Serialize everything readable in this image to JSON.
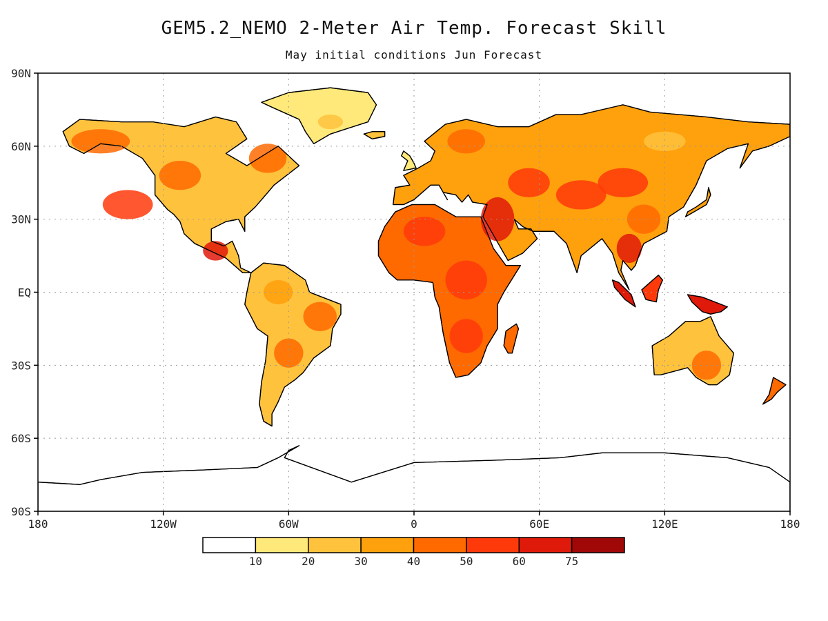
{
  "title": "GEM5.2_NEMO 2-Meter Air Temp. Forecast Skill",
  "subtitle": "May initial conditions  Jun Forecast",
  "axes": {
    "x_ticks": [
      {
        "value": -180,
        "label": "180"
      },
      {
        "value": -120,
        "label": "120W"
      },
      {
        "value": -60,
        "label": "60W"
      },
      {
        "value": 0,
        "label": "0"
      },
      {
        "value": 60,
        "label": "60E"
      },
      {
        "value": 120,
        "label": "120E"
      },
      {
        "value": 180,
        "label": "180"
      }
    ],
    "y_ticks": [
      {
        "value": 90,
        "label": "90N"
      },
      {
        "value": 60,
        "label": "60N"
      },
      {
        "value": 30,
        "label": "30N"
      },
      {
        "value": 0,
        "label": "EQ"
      },
      {
        "value": -30,
        "label": "30S"
      },
      {
        "value": -60,
        "label": "60S"
      },
      {
        "value": -90,
        "label": "90S"
      }
    ],
    "lon_range": [
      -180,
      180
    ],
    "lat_range": [
      -90,
      90
    ],
    "grid": "dotted"
  },
  "colorbar": {
    "bins": [
      {
        "color": "#ffffff"
      },
      {
        "color": "#ffe97a"
      },
      {
        "color": "#ffc23d"
      },
      {
        "color": "#ffa00d"
      },
      {
        "color": "#ff6a00"
      },
      {
        "color": "#ff3a0a"
      },
      {
        "color": "#e01a0a"
      },
      {
        "color": "#a00808"
      }
    ],
    "labels": [
      "10",
      "20",
      "30",
      "40",
      "50",
      "60",
      "75"
    ]
  },
  "regions": [
    {
      "name": "north-america",
      "color": "#ffc23d",
      "outline": [
        [
          -168,
          66
        ],
        [
          -160,
          71
        ],
        [
          -140,
          70
        ],
        [
          -125,
          70
        ],
        [
          -110,
          68
        ],
        [
          -95,
          72
        ],
        [
          -85,
          70
        ],
        [
          -80,
          63
        ],
        [
          -90,
          57
        ],
        [
          -80,
          52
        ],
        [
          -65,
          60
        ],
        [
          -55,
          52
        ],
        [
          -67,
          44
        ],
        [
          -70,
          41
        ],
        [
          -76,
          35
        ],
        [
          -81,
          31
        ],
        [
          -81,
          25
        ],
        [
          -84,
          30
        ],
        [
          -90,
          29
        ],
        [
          -97,
          26
        ],
        [
          -97,
          21
        ],
        [
          -91,
          19
        ],
        [
          -87,
          21
        ],
        [
          -84,
          15
        ],
        [
          -83,
          10
        ],
        [
          -78,
          8
        ],
        [
          -82,
          8
        ],
        [
          -90,
          14
        ],
        [
          -95,
          16
        ],
        [
          -105,
          20
        ],
        [
          -110,
          24
        ],
        [
          -112,
          29
        ],
        [
          -115,
          32
        ],
        [
          -118,
          34
        ],
        [
          -124,
          40
        ],
        [
          -124,
          48
        ],
        [
          -130,
          55
        ],
        [
          -140,
          60
        ],
        [
          -150,
          61
        ],
        [
          -158,
          57
        ],
        [
          -165,
          60
        ]
      ]
    },
    {
      "name": "greenland",
      "color": "#ffe97a",
      "outline": [
        [
          -73,
          78
        ],
        [
          -60,
          82
        ],
        [
          -40,
          84
        ],
        [
          -22,
          82
        ],
        [
          -18,
          77
        ],
        [
          -22,
          70
        ],
        [
          -40,
          65
        ],
        [
          -48,
          61
        ],
        [
          -52,
          66
        ],
        [
          -55,
          71
        ],
        [
          -68,
          76
        ]
      ]
    },
    {
      "name": "south-america",
      "color": "#ffc23d",
      "outline": [
        [
          -78,
          8
        ],
        [
          -72,
          12
        ],
        [
          -62,
          11
        ],
        [
          -52,
          5
        ],
        [
          -50,
          0
        ],
        [
          -35,
          -5
        ],
        [
          -35,
          -9
        ],
        [
          -39,
          -15
        ],
        [
          -40,
          -22
        ],
        [
          -48,
          -27
        ],
        [
          -53,
          -33
        ],
        [
          -57,
          -36
        ],
        [
          -62,
          -39
        ],
        [
          -65,
          -45
        ],
        [
          -68,
          -50
        ],
        [
          -68,
          -55
        ],
        [
          -72,
          -53
        ],
        [
          -74,
          -46
        ],
        [
          -73,
          -37
        ],
        [
          -71,
          -28
        ],
        [
          -70,
          -18
        ],
        [
          -75,
          -15
        ],
        [
          -81,
          -5
        ],
        [
          -80,
          0
        ]
      ]
    },
    {
      "name": "eurasia",
      "color": "#ffa00d",
      "outline": [
        [
          -10,
          36
        ],
        [
          -9,
          43
        ],
        [
          -2,
          44
        ],
        [
          -5,
          48
        ],
        [
          2,
          51
        ],
        [
          8,
          54
        ],
        [
          10,
          58
        ],
        [
          5,
          62
        ],
        [
          15,
          69
        ],
        [
          25,
          71
        ],
        [
          40,
          68
        ],
        [
          45,
          68
        ],
        [
          55,
          68
        ],
        [
          68,
          73
        ],
        [
          80,
          73
        ],
        [
          100,
          77
        ],
        [
          113,
          74
        ],
        [
          140,
          72
        ],
        [
          160,
          70
        ],
        [
          180,
          69
        ],
        [
          180,
          64
        ],
        [
          170,
          60
        ],
        [
          162,
          58
        ],
        [
          156,
          51
        ],
        [
          160,
          61
        ],
        [
          150,
          59
        ],
        [
          140,
          54
        ],
        [
          135,
          44
        ],
        [
          129,
          35
        ],
        [
          122,
          31
        ],
        [
          121,
          25
        ],
        [
          110,
          20
        ],
        [
          108,
          16
        ],
        [
          106,
          11
        ],
        [
          104,
          9
        ],
        [
          100,
          13
        ],
        [
          99,
          9
        ],
        [
          103,
          1
        ],
        [
          98,
          8
        ],
        [
          95,
          16
        ],
        [
          90,
          22
        ],
        [
          80,
          15
        ],
        [
          78,
          8
        ],
        [
          73,
          20
        ],
        [
          67,
          25
        ],
        [
          57,
          25
        ],
        [
          52,
          27
        ],
        [
          48,
          30
        ],
        [
          50,
          26
        ],
        [
          56,
          26
        ],
        [
          59,
          22
        ],
        [
          52,
          16
        ],
        [
          45,
          13
        ],
        [
          43,
          16
        ],
        [
          35,
          28
        ],
        [
          33,
          31
        ],
        [
          35,
          36
        ],
        [
          28,
          37
        ],
        [
          26,
          40
        ],
        [
          23,
          37
        ],
        [
          20,
          40
        ],
        [
          14,
          41
        ],
        [
          16,
          38
        ],
        [
          12,
          44
        ],
        [
          8,
          44
        ],
        [
          0,
          38
        ],
        [
          -5,
          36
        ]
      ]
    },
    {
      "name": "africa",
      "color": "#ff6a00",
      "outline": [
        [
          -17,
          21
        ],
        [
          -17,
          15
        ],
        [
          -12,
          8
        ],
        [
          -8,
          5
        ],
        [
          0,
          5
        ],
        [
          9,
          4
        ],
        [
          10,
          -2
        ],
        [
          12,
          -6
        ],
        [
          14,
          -17
        ],
        [
          17,
          -29
        ],
        [
          20,
          -35
        ],
        [
          26,
          -34
        ],
        [
          32,
          -29
        ],
        [
          35,
          -22
        ],
        [
          40,
          -15
        ],
        [
          40,
          -5
        ],
        [
          43,
          0
        ],
        [
          51,
          11
        ],
        [
          44,
          11
        ],
        [
          38,
          18
        ],
        [
          32,
          31
        ],
        [
          20,
          31
        ],
        [
          10,
          36
        ],
        [
          -1,
          36
        ],
        [
          -9,
          33
        ],
        [
          -14,
          27
        ]
      ]
    },
    {
      "name": "australia",
      "color": "#ffc23d",
      "outline": [
        [
          114,
          -22
        ],
        [
          122,
          -18
        ],
        [
          130,
          -12
        ],
        [
          137,
          -12
        ],
        [
          142,
          -10
        ],
        [
          146,
          -18
        ],
        [
          153,
          -25
        ],
        [
          151,
          -34
        ],
        [
          145,
          -38
        ],
        [
          141,
          -38
        ],
        [
          135,
          -35
        ],
        [
          131,
          -31
        ],
        [
          118,
          -34
        ],
        [
          115,
          -34
        ]
      ]
    },
    {
      "name": "antarctica",
      "color": "#ffffff",
      "outline": [
        [
          -180,
          -85
        ],
        [
          -180,
          -78
        ],
        [
          -160,
          -79
        ],
        [
          -150,
          -77
        ],
        [
          -130,
          -74
        ],
        [
          -100,
          -73
        ],
        [
          -75,
          -72
        ],
        [
          -65,
          -68
        ],
        [
          -55,
          -63
        ],
        [
          -60,
          -65
        ],
        [
          -62,
          -68
        ],
        [
          -30,
          -78
        ],
        [
          0,
          -70
        ],
        [
          40,
          -69
        ],
        [
          70,
          -68
        ],
        [
          90,
          -66
        ],
        [
          120,
          -66
        ],
        [
          150,
          -68
        ],
        [
          170,
          -72
        ],
        [
          180,
          -78
        ],
        [
          180,
          -90
        ],
        [
          -180,
          -90
        ]
      ]
    },
    {
      "name": "madagascar",
      "color": "#ff6a00",
      "outline": [
        [
          44,
          -16
        ],
        [
          49,
          -13
        ],
        [
          50,
          -15
        ],
        [
          47,
          -25
        ],
        [
          45,
          -25
        ],
        [
          43,
          -22
        ]
      ]
    },
    {
      "name": "new-guinea",
      "color": "#e01a0a",
      "outline": [
        [
          131,
          -1
        ],
        [
          138,
          -2
        ],
        [
          141,
          -3
        ],
        [
          150,
          -6
        ],
        [
          147,
          -8
        ],
        [
          142,
          -9
        ],
        [
          138,
          -8
        ],
        [
          133,
          -4
        ]
      ]
    },
    {
      "name": "borneo",
      "color": "#ff3a0a",
      "outline": [
        [
          109,
          1
        ],
        [
          113,
          4
        ],
        [
          117,
          7
        ],
        [
          119,
          5
        ],
        [
          117,
          1
        ],
        [
          116,
          -4
        ],
        [
          111,
          -3
        ]
      ]
    },
    {
      "name": "sumatra",
      "color": "#e01a0a",
      "outline": [
        [
          95,
          5
        ],
        [
          98,
          4
        ],
        [
          104,
          -1
        ],
        [
          106,
          -6
        ],
        [
          101,
          -3
        ],
        [
          96,
          2
        ]
      ]
    },
    {
      "name": "new-zealand",
      "color": "#ff6a00",
      "outline": [
        [
          172,
          -35
        ],
        [
          178,
          -38
        ],
        [
          174,
          -41
        ],
        [
          171,
          -44
        ],
        [
          167,
          -46
        ],
        [
          170,
          -42
        ]
      ]
    },
    {
      "name": "japan",
      "color": "#ffa00d",
      "outline": [
        [
          130,
          31
        ],
        [
          136,
          34
        ],
        [
          140,
          36
        ],
        [
          142,
          40
        ],
        [
          141,
          43
        ],
        [
          140,
          38
        ],
        [
          135,
          35
        ],
        [
          131,
          33
        ]
      ]
    },
    {
      "name": "great-britain",
      "color": "#ffe97a",
      "outline": [
        [
          -5,
          50
        ],
        [
          1,
          51
        ],
        [
          0,
          53
        ],
        [
          -2,
          56
        ],
        [
          -5,
          58
        ],
        [
          -6,
          56
        ],
        [
          -3,
          54
        ]
      ]
    },
    {
      "name": "iceland",
      "color": "#ffc23d",
      "outline": [
        [
          -24,
          65
        ],
        [
          -20,
          66
        ],
        [
          -14,
          66
        ],
        [
          -14,
          64
        ],
        [
          -20,
          63
        ]
      ]
    }
  ],
  "skill_cells": [
    {
      "lon": -137,
      "lat": 36,
      "rx": 12,
      "ry": 6,
      "color": "#ff3a0a"
    },
    {
      "lon": -150,
      "lat": 62,
      "rx": 14,
      "ry": 5,
      "color": "#ff6a00"
    },
    {
      "lon": -112,
      "lat": 48,
      "rx": 10,
      "ry": 6,
      "color": "#ff6a00"
    },
    {
      "lon": -70,
      "lat": 55,
      "rx": 9,
      "ry": 6,
      "color": "#ff6a00"
    },
    {
      "lon": -95,
      "lat": 17,
      "rx": 6,
      "ry": 4,
      "color": "#e01a0a"
    },
    {
      "lon": -45,
      "lat": -10,
      "rx": 8,
      "ry": 6,
      "color": "#ff6a00"
    },
    {
      "lon": -60,
      "lat": -25,
      "rx": 7,
      "ry": 6,
      "color": "#ff6a00"
    },
    {
      "lon": -65,
      "lat": 0,
      "rx": 7,
      "ry": 5,
      "color": "#ffa00d"
    },
    {
      "lon": 5,
      "lat": 25,
      "rx": 10,
      "ry": 6,
      "color": "#ff3a0a"
    },
    {
      "lon": 25,
      "lat": 5,
      "rx": 10,
      "ry": 8,
      "color": "#ff3a0a"
    },
    {
      "lon": 25,
      "lat": -18,
      "rx": 8,
      "ry": 7,
      "color": "#ff3a0a"
    },
    {
      "lon": 40,
      "lat": 30,
      "rx": 8,
      "ry": 9,
      "color": "#e01a0a"
    },
    {
      "lon": 55,
      "lat": 45,
      "rx": 10,
      "ry": 6,
      "color": "#ff3a0a"
    },
    {
      "lon": 25,
      "lat": 62,
      "rx": 9,
      "ry": 5,
      "color": "#ff6a00"
    },
    {
      "lon": 80,
      "lat": 40,
      "rx": 12,
      "ry": 6,
      "color": "#ff3a0a"
    },
    {
      "lon": 100,
      "lat": 45,
      "rx": 12,
      "ry": 6,
      "color": "#ff3a0a"
    },
    {
      "lon": 103,
      "lat": 18,
      "rx": 6,
      "ry": 6,
      "color": "#e01a0a"
    },
    {
      "lon": 110,
      "lat": 30,
      "rx": 8,
      "ry": 6,
      "color": "#ff6a00"
    },
    {
      "lon": 140,
      "lat": -30,
      "rx": 7,
      "ry": 6,
      "color": "#ff6a00"
    },
    {
      "lon": 120,
      "lat": 62,
      "rx": 10,
      "ry": 4,
      "color": "#ffc23d"
    },
    {
      "lon": -40,
      "lat": 70,
      "rx": 6,
      "ry": 3,
      "color": "#ffc23d"
    }
  ]
}
